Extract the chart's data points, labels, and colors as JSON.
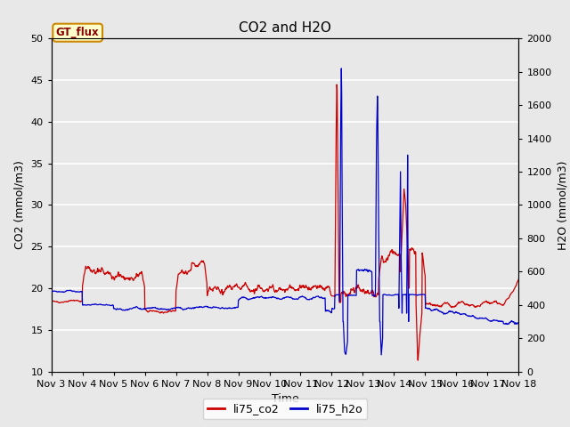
{
  "title": "CO2 and H2O",
  "xlabel": "Time",
  "ylabel_left": "CO2 (mmol/m3)",
  "ylabel_right": "H2O (mmol/m3)",
  "ylim_left": [
    10,
    50
  ],
  "ylim_right": [
    0,
    2000
  ],
  "yticks_left": [
    10,
    15,
    20,
    25,
    30,
    35,
    40,
    45,
    50
  ],
  "yticks_right": [
    0,
    200,
    400,
    600,
    800,
    1000,
    1200,
    1400,
    1600,
    1800,
    2000
  ],
  "xtick_labels": [
    "Nov 3",
    "Nov 4",
    "Nov 5",
    "Nov 6",
    "Nov 7",
    "Nov 8",
    "Nov 9",
    "Nov 10",
    "Nov 11",
    "Nov 12",
    "Nov 13",
    "Nov 14",
    "Nov 15",
    "Nov 16",
    "Nov 17",
    "Nov 18"
  ],
  "plot_bg_color": "#e8e8e8",
  "fig_bg_color": "#e8e8e8",
  "grid_color": "#ffffff",
  "co2_color": "#cc0000",
  "h2o_color": "#0000cc",
  "annotation_text": "GT_flux",
  "annotation_bg": "#ffffcc",
  "annotation_border": "#cc8800",
  "annotation_text_color": "#880000",
  "legend_co2": "li75_co2",
  "legend_h2o": "li75_h2o",
  "title_fontsize": 11,
  "axis_fontsize": 9,
  "tick_fontsize": 8,
  "legend_fontsize": 9
}
